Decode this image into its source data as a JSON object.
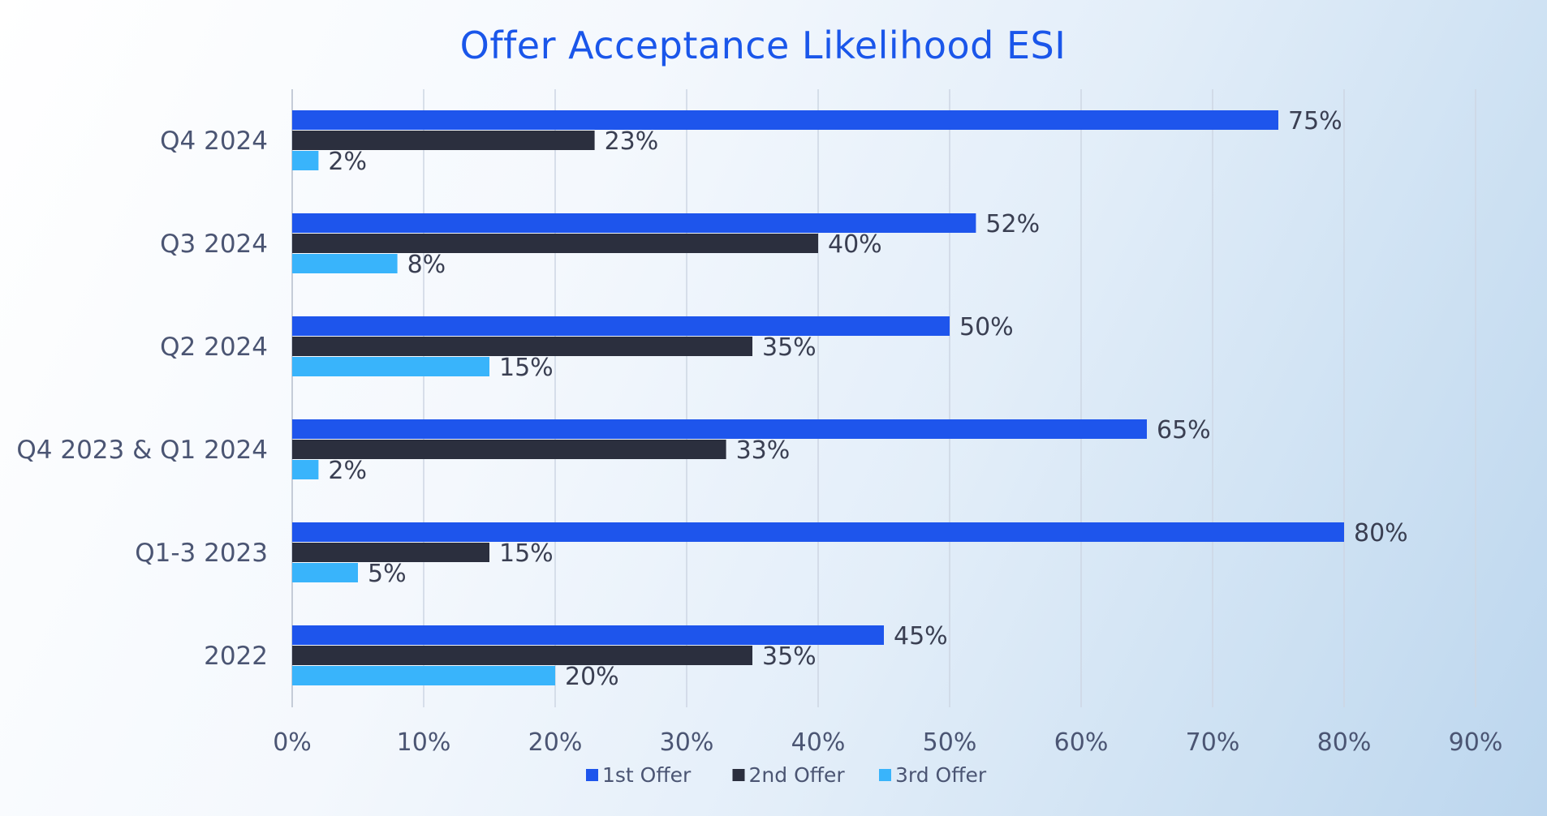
{
  "chart_data": {
    "type": "bar",
    "orientation": "horizontal",
    "title": "Offer Acceptance Likelihood ESI",
    "categories": [
      "Q4 2024",
      "Q3 2024",
      "Q2 2024",
      "Q4 2023 & Q1 2024",
      "Q1-3 2023",
      "2022"
    ],
    "series": [
      {
        "name": "1st Offer",
        "color": "#1e55ec",
        "values": [
          75,
          52,
          50,
          65,
          80,
          45
        ]
      },
      {
        "name": "2nd Offer",
        "color": "#2b2f3e",
        "values": [
          23,
          40,
          35,
          33,
          15,
          35
        ]
      },
      {
        "name": "3rd Offer",
        "color": "#39b4fb",
        "values": [
          2,
          8,
          15,
          2,
          5,
          20
        ]
      }
    ],
    "xlim": [
      0,
      90
    ],
    "xticks": [
      0,
      10,
      20,
      30,
      40,
      50,
      60,
      70,
      80,
      90
    ],
    "value_suffix": "%",
    "grid": true,
    "legend_position": "bottom-center",
    "xlabel": "",
    "ylabel": ""
  }
}
